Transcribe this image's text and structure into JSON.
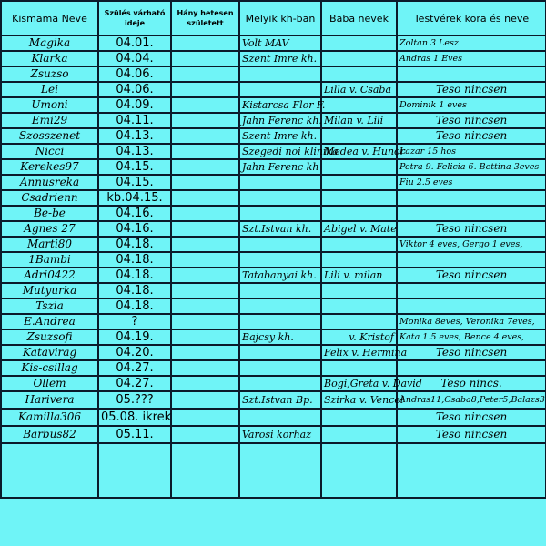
{
  "headers": [
    "Kismama Neve",
    "Szülés várható ideje",
    "Hány hetesen született",
    "Melyik kh-ban",
    "Baba nevek",
    "Testvérek kora és neve"
  ],
  "rows": [
    {
      "name": "Magika",
      "date": "04.01.",
      "weeks": "",
      "hospital": "Volt MAV",
      "baby": "",
      "siblings": "Zoltan 3 Lesz"
    },
    {
      "name": "Klarka",
      "date": "04.04.",
      "weeks": "",
      "hospital": "Szent Imre kh.",
      "baby": "",
      "siblings": "Andras 1 Eves"
    },
    {
      "name": "Zsuzso",
      "date": "04.06.",
      "weeks": "",
      "hospital": "",
      "baby": "",
      "siblings": ""
    },
    {
      "name": "Lei",
      "date": "04.06.",
      "weeks": "",
      "hospital": "",
      "baby": "Lilla v. Csaba",
      "siblings": "Teso nincsen",
      "center": true
    },
    {
      "name": "Umoni",
      "date": "04.09.",
      "weeks": "",
      "hospital": "Kistarcsa Flor F.",
      "baby": "",
      "siblings": "Dominik 1 eves"
    },
    {
      "name": "Emi29",
      "date": "04.11.",
      "weeks": "",
      "hospital": "Jahn Ferenc kh.",
      "baby": "Milan v. Lili",
      "siblings": "Teso nincsen",
      "center": true
    },
    {
      "name": "Szosszenet",
      "date": "04.13.",
      "weeks": "",
      "hospital": "Szent Imre kh.",
      "baby": "",
      "siblings": "Teso nincsen",
      "center": true
    },
    {
      "name": "Nicci",
      "date": "04.13.",
      "weeks": "",
      "hospital": "Szegedi noi klinika",
      "baby": "Medea v. Hunor",
      "siblings": "Lazar 15 hos"
    },
    {
      "name": "Kerekes97",
      "date": "04.15.",
      "weeks": "",
      "hospital": "Jahn Ferenc kh",
      "baby": "",
      "siblings": "Petra 9. Felicia 6. Bettina 3eves"
    },
    {
      "name": "Annusreka",
      "date": "04.15.",
      "weeks": "",
      "hospital": "",
      "baby": "",
      "siblings": "Fiu 2.5 eves"
    },
    {
      "name": "Csadrienn",
      "date": "kb.04.15.",
      "weeks": "",
      "hospital": "",
      "baby": "",
      "siblings": ""
    },
    {
      "name": "Be-be",
      "date": "04.16.",
      "weeks": "",
      "hospital": "",
      "baby": "",
      "siblings": ""
    },
    {
      "name": "Agnes 27",
      "date": "04.16.",
      "weeks": "",
      "hospital": "Szt.Istvan kh.",
      "baby": "Abigel v. Mate",
      "siblings": "Teso nincsen",
      "center": true
    },
    {
      "name": "Marti80",
      "date": "04.18.",
      "weeks": "",
      "hospital": "",
      "baby": "",
      "siblings": "Viktor 4 eves, Gergo 1 eves,"
    },
    {
      "name": "1Bambi",
      "date": "04.18.",
      "weeks": "",
      "hospital": "",
      "baby": "",
      "siblings": ""
    },
    {
      "name": "Adri0422",
      "date": "04.18.",
      "weeks": "",
      "hospital": "Tatabanyai kh.",
      "baby": "Lili v. milan",
      "siblings": "Teso nincsen",
      "center": true
    },
    {
      "name": "Mutyurka",
      "date": "04.18.",
      "weeks": "",
      "hospital": "",
      "baby": "",
      "siblings": ""
    },
    {
      "name": "Tszia",
      "date": "04.18.",
      "weeks": "",
      "hospital": "",
      "baby": "",
      "siblings": ""
    },
    {
      "name": "E.Andrea",
      "date": "?",
      "weeks": "",
      "hospital": "",
      "baby": "",
      "siblings": "Monika 8eves, Veronika 7eves,"
    },
    {
      "name": "Zsuzsofi",
      "date": "04.19.",
      "weeks": "",
      "hospital": "Bajcsy kh.",
      "baby": "v. Kristof",
      "siblings": "Kata 1.5 eves,  Bence 4 eves,"
    },
    {
      "name": "Katavirag",
      "date": "04.20.",
      "weeks": "",
      "hospital": "",
      "baby": "Felix v. Hermina",
      "siblings": "Teso nincsen",
      "center": true
    },
    {
      "name": "Kis-csillag",
      "date": "04.27.",
      "weeks": "",
      "hospital": "",
      "baby": "",
      "siblings": ""
    },
    {
      "name": "Ollem",
      "date": "04.27.",
      "weeks": "",
      "hospital": "",
      "baby": "Bogi,Greta v. David",
      "siblings": "Teso nincs.",
      "center": true
    },
    {
      "name": "Harivera",
      "date": "05.???",
      "weeks": "",
      "hospital": "Szt.Istvan Bp.",
      "baby": "Szirka v. Vencel",
      "siblings": "Andras11,Csaba8,Peter5,Balazs3"
    },
    {
      "name": "Kamilla306",
      "date": "05.08. ikrek",
      "weeks": "",
      "hospital": "",
      "baby": "",
      "siblings": "Teso nincsen",
      "center": true
    },
    {
      "name": "Barbus82",
      "date": "05.11.",
      "weeks": "",
      "hospital": "Varosi korhaz",
      "baby": "",
      "siblings": "Teso nincsen",
      "center": true
    }
  ],
  "colors": {
    "cell_bg": "#6ff4f7",
    "grid": "#0a1a2a"
  }
}
